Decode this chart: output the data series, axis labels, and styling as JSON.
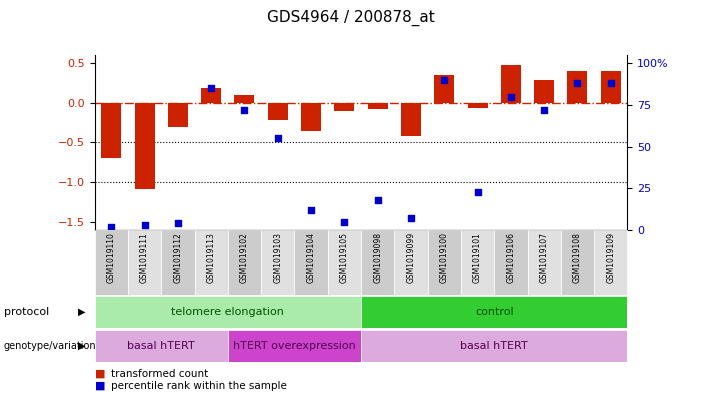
{
  "title": "GDS4964 / 200878_at",
  "samples": [
    "GSM1019110",
    "GSM1019111",
    "GSM1019112",
    "GSM1019113",
    "GSM1019102",
    "GSM1019103",
    "GSM1019104",
    "GSM1019105",
    "GSM1019098",
    "GSM1019099",
    "GSM1019100",
    "GSM1019101",
    "GSM1019106",
    "GSM1019107",
    "GSM1019108",
    "GSM1019109"
  ],
  "transformed_count": [
    -0.7,
    -1.08,
    -0.3,
    0.19,
    0.1,
    -0.22,
    -0.35,
    -0.1,
    -0.08,
    -0.42,
    0.35,
    -0.07,
    0.48,
    0.28,
    0.4,
    0.4
  ],
  "percentile_rank": [
    2,
    3,
    4,
    85,
    72,
    55,
    12,
    5,
    18,
    7,
    90,
    23,
    80,
    72,
    88,
    88
  ],
  "protocol_groups": [
    {
      "label": "telomere elongation",
      "start": 0,
      "end": 8,
      "color": "#aaeaaa"
    },
    {
      "label": "control",
      "start": 8,
      "end": 16,
      "color": "#33cc33"
    }
  ],
  "genotype_groups": [
    {
      "label": "basal hTERT",
      "start": 0,
      "end": 4,
      "color": "#ddaadd"
    },
    {
      "label": "hTERT overexpression",
      "start": 4,
      "end": 8,
      "color": "#cc44cc"
    },
    {
      "label": "basal hTERT",
      "start": 8,
      "end": 16,
      "color": "#ddaadd"
    }
  ],
  "bar_color": "#cc2200",
  "dot_color": "#0000cc",
  "ylim_left": [
    -1.6,
    0.6
  ],
  "ylim_right": [
    0,
    105
  ],
  "yticks_left": [
    -1.5,
    -1.0,
    -0.5,
    0.0,
    0.5
  ],
  "yticks_right": [
    0,
    25,
    50,
    75,
    100
  ],
  "hline_y": 0.0,
  "dotted_lines": [
    -0.5,
    -1.0
  ],
  "bg_color": "#ffffff",
  "sample_bg_even": "#cccccc",
  "sample_bg_odd": "#e0e0e0"
}
